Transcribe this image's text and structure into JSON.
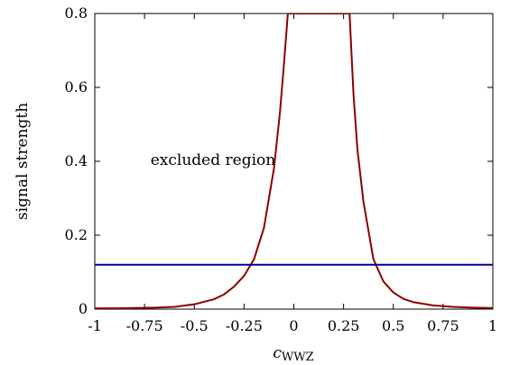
{
  "chart_data": {
    "type": "line",
    "title": "",
    "xlabel": "c",
    "xlabel_subscript": "WWZ",
    "ylabel": "signal strength",
    "xlim": [
      -1,
      1
    ],
    "ylim": [
      0,
      0.8
    ],
    "x_ticks": [
      -1,
      -0.75,
      -0.5,
      -0.25,
      0,
      0.25,
      0.5,
      0.75,
      1
    ],
    "x_tick_labels": [
      "-1",
      "-0.75",
      "-0.5",
      "-0.25",
      "0",
      "0.25",
      "0.5",
      "0.75",
      "1"
    ],
    "y_ticks": [
      0,
      0.2,
      0.4,
      0.6,
      0.8
    ],
    "y_tick_labels": [
      "0",
      "0.2",
      "0.4",
      "0.6",
      "0.8"
    ],
    "grid": false,
    "annotations": [
      {
        "text": "excluded region",
        "x": -0.72,
        "y": 0.39
      }
    ],
    "series": [
      {
        "color": "#8b0000",
        "x": [
          -1,
          -0.9,
          -0.8,
          -0.7,
          -0.6,
          -0.5,
          -0.4,
          -0.35,
          -0.3,
          -0.25,
          -0.2,
          -0.15,
          -0.1,
          -0.07,
          -0.05,
          -0.03,
          -0.02,
          0.27,
          0.28,
          0.3,
          0.32,
          0.35,
          0.4,
          0.45,
          0.5,
          0.55,
          0.6,
          0.7,
          0.8,
          0.9,
          1
        ],
        "y": [
          0.002,
          0.002,
          0.003,
          0.004,
          0.006,
          0.013,
          0.027,
          0.04,
          0.061,
          0.09,
          0.135,
          0.22,
          0.38,
          0.53,
          0.66,
          0.8,
          0.8,
          0.8,
          0.8,
          0.58,
          0.43,
          0.29,
          0.135,
          0.075,
          0.045,
          0.028,
          0.019,
          0.01,
          0.006,
          0.004,
          0.003
        ]
      },
      {
        "color": "#00008b",
        "x": [
          -1,
          1
        ],
        "y": [
          0.12,
          0.12
        ]
      }
    ]
  }
}
